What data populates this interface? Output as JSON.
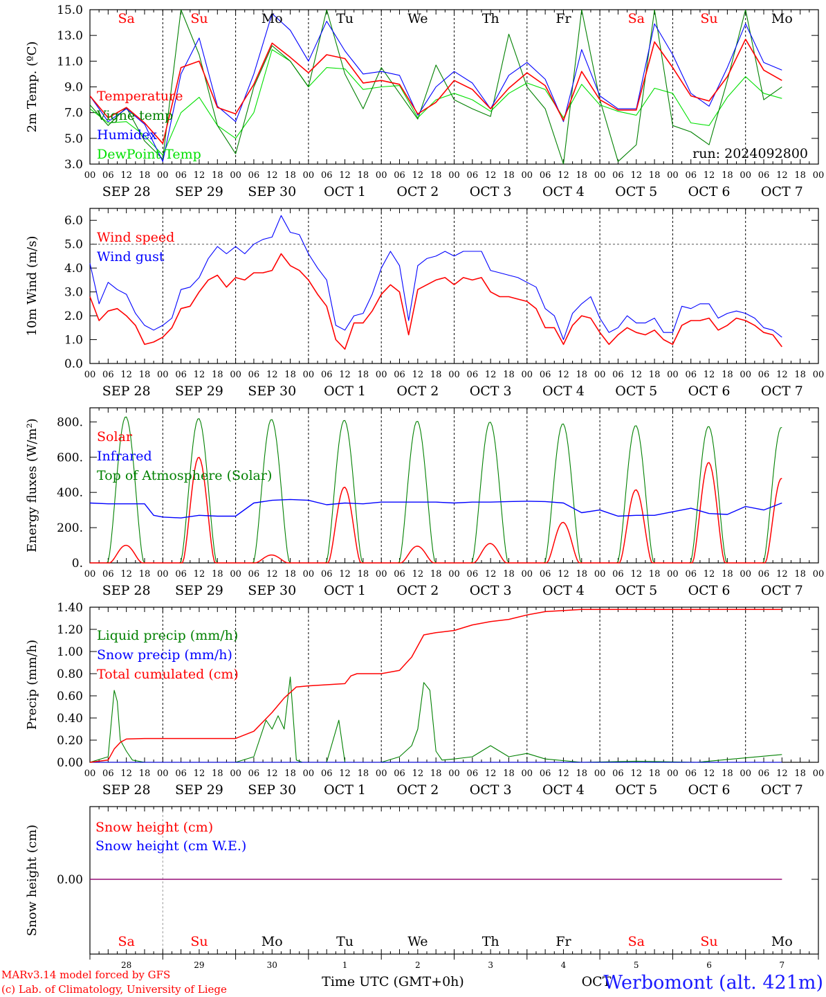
{
  "run_label": "run: 2024092800",
  "footer": {
    "credit1": "MARv3.14 model forced by GFS",
    "credit2": "(c) Lab. of Climatology, University of Liege",
    "xlabel": "Time UTC (GMT+0h)",
    "station": "Werbomont (alt. 421m)",
    "overlap_text": "OCT"
  },
  "days": [
    {
      "abbr": "Sa",
      "date": "SEP 28",
      "num": "28",
      "weekend": true
    },
    {
      "abbr": "Su",
      "date": "SEP 29",
      "num": "29",
      "weekend": true
    },
    {
      "abbr": "Mo",
      "date": "SEP 30",
      "num": "30",
      "weekend": false
    },
    {
      "abbr": "Tu",
      "date": "OCT 1",
      "num": "1",
      "weekend": false
    },
    {
      "abbr": "We",
      "date": "OCT 2",
      "num": "2",
      "weekend": false
    },
    {
      "abbr": "Th",
      "date": "OCT 3",
      "num": "3",
      "weekend": false
    },
    {
      "abbr": "Fr",
      "date": "OCT 4",
      "num": "4",
      "weekend": false
    },
    {
      "abbr": "Sa",
      "date": "OCT 5",
      "num": "5",
      "weekend": true
    },
    {
      "abbr": "Su",
      "date": "OCT 6",
      "num": "6",
      "weekend": true
    },
    {
      "abbr": "Mo",
      "date": "OCT 7",
      "num": "7",
      "weekend": false
    }
  ],
  "hour_ticks": [
    "00",
    "06",
    "12",
    "18"
  ],
  "end_tick": "00",
  "colors": {
    "red": "#ff0000",
    "green": "#008000",
    "blue": "#0000ff",
    "lightgreen": "#00e000",
    "purple": "#800080",
    "station": "#1a1aff"
  },
  "chart_data": [
    {
      "type": "line",
      "ylabel": "2m Temp. (ºC)",
      "ylim": [
        3.0,
        15.0
      ],
      "yticks": [
        "3.0",
        "5.0",
        "7.0",
        "9.0",
        "11.0",
        "13.0",
        "15.0"
      ],
      "x_unit": "hours since SEP 28 00 UTC",
      "series": [
        {
          "name": "Temperature",
          "color": "#ff0000",
          "x": [
            0,
            6,
            12,
            18,
            24,
            30,
            36,
            42,
            48,
            54,
            60,
            66,
            72,
            78,
            84,
            90,
            96,
            102,
            108,
            114,
            120,
            126,
            132,
            138,
            144,
            150,
            156,
            162,
            168,
            174,
            180,
            186,
            192,
            198,
            204,
            210,
            216,
            222,
            228
          ],
          "y": [
            8.3,
            6.6,
            7.4,
            6.2,
            4.6,
            10.5,
            11.0,
            7.4,
            6.9,
            9.2,
            12.4,
            11.3,
            10.1,
            11.5,
            11.2,
            9.3,
            9.5,
            9.2,
            6.9,
            7.8,
            9.5,
            8.8,
            7.3,
            8.9,
            10.1,
            9.1,
            6.4,
            10.2,
            8.0,
            7.2,
            7.2,
            12.5,
            10.5,
            8.3,
            7.9,
            9.8,
            12.7,
            10.3,
            9.5
          ]
        },
        {
          "name": "Vigne temp",
          "color": "#008000",
          "x": [
            0,
            6,
            12,
            18,
            24,
            30,
            36,
            42,
            48,
            54,
            60,
            66,
            72,
            78,
            84,
            90,
            96,
            102,
            108,
            114,
            120,
            126,
            132,
            138,
            144,
            150,
            156,
            162,
            168,
            174,
            180,
            186,
            192,
            198,
            204,
            210,
            216,
            222,
            228
          ],
          "y": [
            7.6,
            6.0,
            7.4,
            4.8,
            3.4,
            15.0,
            11.5,
            6.0,
            3.8,
            9.0,
            12.2,
            11.0,
            9.0,
            15.0,
            10.0,
            7.3,
            10.5,
            8.5,
            6.5,
            10.7,
            8.0,
            7.3,
            6.7,
            13.1,
            9.0,
            7.3,
            3.0,
            15.0,
            8.0,
            3.2,
            4.5,
            15.0,
            6.0,
            5.5,
            4.5,
            9.5,
            15.0,
            8.0,
            9.0
          ]
        },
        {
          "name": "Humidex",
          "color": "#0000ff",
          "x": [
            0,
            6,
            12,
            18,
            24,
            30,
            36,
            42,
            48,
            54,
            60,
            66,
            72,
            78,
            84,
            90,
            96,
            102,
            108,
            114,
            120,
            126,
            132,
            138,
            144,
            150,
            156,
            162,
            168,
            174,
            180,
            186,
            192,
            198,
            204,
            210,
            216,
            222,
            228
          ],
          "y": [
            8.3,
            6.3,
            7.3,
            6.1,
            3.2,
            10.0,
            12.8,
            7.5,
            6.3,
            10.0,
            14.7,
            13.4,
            11.0,
            14.1,
            11.8,
            10.0,
            10.2,
            9.9,
            6.8,
            9.0,
            10.2,
            9.3,
            7.3,
            9.9,
            10.9,
            9.6,
            6.3,
            11.9,
            8.3,
            7.3,
            7.3,
            13.9,
            11.5,
            8.5,
            7.5,
            10.5,
            13.9,
            10.9,
            10.3
          ]
        },
        {
          "name": "DewPoint Temp",
          "color": "#00e000",
          "x": [
            0,
            6,
            12,
            18,
            24,
            30,
            36,
            42,
            48,
            54,
            60,
            66,
            72,
            78,
            84,
            90,
            96,
            102,
            108,
            114,
            120,
            126,
            132,
            138,
            144,
            150,
            156,
            162,
            168,
            174,
            180,
            186,
            192,
            198,
            204,
            210,
            216,
            222,
            228
          ],
          "y": [
            7.3,
            6.2,
            6.3,
            5.2,
            3.7,
            7.0,
            8.2,
            6.0,
            5.0,
            7.0,
            11.9,
            11.0,
            9.0,
            10.5,
            10.4,
            8.8,
            9.0,
            9.1,
            6.6,
            8.0,
            8.5,
            8.0,
            7.1,
            8.5,
            9.3,
            8.8,
            6.6,
            9.2,
            7.6,
            7.1,
            6.8,
            8.9,
            8.5,
            6.2,
            6.0,
            8.2,
            9.8,
            8.5,
            8.1
          ]
        }
      ]
    },
    {
      "type": "line",
      "ylabel": "10m Wind (m/s)",
      "ylim": [
        0.0,
        6.5
      ],
      "yticks": [
        "0.0",
        "1.0",
        "2.0",
        "3.0",
        "4.0",
        "5.0",
        "6.0"
      ],
      "ref_line": 5.0,
      "x_unit": "hours since SEP 28 00 UTC",
      "series": [
        {
          "name": "Wind speed",
          "color": "#ff0000",
          "x": [
            0,
            3,
            6,
            9,
            12,
            15,
            18,
            21,
            24,
            27,
            30,
            33,
            36,
            39,
            42,
            45,
            48,
            51,
            54,
            57,
            60,
            63,
            66,
            69,
            72,
            75,
            78,
            81,
            84,
            87,
            90,
            93,
            96,
            99,
            102,
            105,
            108,
            111,
            114,
            117,
            120,
            123,
            126,
            129,
            132,
            135,
            138,
            141,
            144,
            147,
            150,
            153,
            156,
            159,
            162,
            165,
            168,
            171,
            174,
            177,
            180,
            183,
            186,
            189,
            192,
            195,
            198,
            201,
            204,
            207,
            210,
            213,
            216,
            219,
            222,
            225,
            228
          ],
          "y": [
            2.8,
            1.8,
            2.2,
            2.3,
            2.0,
            1.6,
            0.8,
            0.9,
            1.1,
            1.5,
            2.3,
            2.4,
            3.0,
            3.5,
            3.7,
            3.2,
            3.6,
            3.5,
            3.8,
            3.8,
            3.9,
            4.6,
            4.1,
            3.9,
            3.5,
            2.9,
            2.4,
            1.0,
            0.6,
            1.7,
            1.7,
            2.2,
            2.9,
            3.3,
            3.0,
            1.2,
            3.1,
            3.3,
            3.5,
            3.6,
            3.3,
            3.6,
            3.5,
            3.6,
            3.0,
            2.8,
            2.8,
            2.7,
            2.6,
            2.3,
            1.5,
            1.5,
            0.8,
            1.6,
            2.0,
            1.9,
            1.3,
            0.8,
            1.2,
            1.5,
            1.3,
            1.2,
            1.4,
            1.0,
            0.8,
            1.6,
            1.8,
            1.8,
            1.9,
            1.4,
            1.6,
            1.9,
            1.8,
            1.6,
            1.3,
            1.2,
            0.7
          ]
        },
        {
          "name": "Wind gust",
          "color": "#0000ff",
          "x": [
            0,
            3,
            6,
            9,
            12,
            15,
            18,
            21,
            24,
            27,
            30,
            33,
            36,
            39,
            42,
            45,
            48,
            51,
            54,
            57,
            60,
            63,
            66,
            69,
            72,
            75,
            78,
            81,
            84,
            87,
            90,
            93,
            96,
            99,
            102,
            105,
            108,
            111,
            114,
            117,
            120,
            123,
            126,
            129,
            132,
            135,
            138,
            141,
            144,
            147,
            150,
            153,
            156,
            159,
            162,
            165,
            168,
            171,
            174,
            177,
            180,
            183,
            186,
            189,
            192,
            195,
            198,
            201,
            204,
            207,
            210,
            213,
            216,
            219,
            222,
            225,
            228
          ],
          "y": [
            4.2,
            2.5,
            3.4,
            3.1,
            2.9,
            2.1,
            1.6,
            1.4,
            1.6,
            1.9,
            3.1,
            3.2,
            3.6,
            4.4,
            4.9,
            4.6,
            4.9,
            4.6,
            5.0,
            5.2,
            5.3,
            6.2,
            5.5,
            5.4,
            4.6,
            4.0,
            3.5,
            1.6,
            1.4,
            2.0,
            2.1,
            2.9,
            4.0,
            4.7,
            4.1,
            1.8,
            4.1,
            4.4,
            4.5,
            4.7,
            4.5,
            4.7,
            4.7,
            4.7,
            3.9,
            3.8,
            3.7,
            3.6,
            3.4,
            3.2,
            2.3,
            2.0,
            1.0,
            2.1,
            2.5,
            2.8,
            1.9,
            1.3,
            1.5,
            2.0,
            1.7,
            1.7,
            1.9,
            1.3,
            1.3,
            2.4,
            2.3,
            2.5,
            2.5,
            1.9,
            2.1,
            2.2,
            2.1,
            1.9,
            1.5,
            1.4,
            1.1
          ]
        }
      ]
    },
    {
      "type": "line",
      "ylabel": "Energy fluxes (W/m²)",
      "ylim": [
        0,
        880
      ],
      "yticks": [
        "0.",
        "200.",
        "400.",
        "600.",
        "800."
      ],
      "x_unit": "hours since SEP 28 00 UTC",
      "series": [
        {
          "name": "Solar",
          "color": "#ff0000",
          "day_peaks": [
            100,
            600,
            45,
            430,
            95,
            110,
            230,
            415,
            570,
            480
          ]
        },
        {
          "name": "Infrared",
          "color": "#0000ff",
          "x": [
            0,
            6,
            12,
            18,
            21,
            24,
            30,
            36,
            42,
            48,
            54,
            60,
            66,
            72,
            78,
            84,
            90,
            96,
            102,
            108,
            114,
            120,
            126,
            132,
            138,
            144,
            150,
            156,
            162,
            168,
            174,
            180,
            186,
            192,
            198,
            204,
            210,
            216,
            222,
            228
          ],
          "y": [
            340,
            335,
            335,
            335,
            270,
            260,
            255,
            270,
            265,
            265,
            340,
            355,
            360,
            355,
            330,
            340,
            335,
            345,
            345,
            345,
            345,
            340,
            345,
            345,
            348,
            350,
            348,
            340,
            285,
            300,
            265,
            270,
            270,
            290,
            310,
            280,
            275,
            320,
            300,
            340
          ]
        },
        {
          "name": "Top of Atmosphere (Solar)",
          "color": "#008000",
          "day_peaks": [
            830,
            820,
            815,
            810,
            805,
            800,
            790,
            780,
            775,
            770
          ]
        }
      ]
    },
    {
      "type": "line",
      "ylabel": "Precip (mm/h)",
      "ylim": [
        0.0,
        1.4
      ],
      "yticks": [
        "0.00",
        "0.20",
        "0.40",
        "0.60",
        "0.80",
        "1.00",
        "1.20",
        "1.40"
      ],
      "x_unit": "hours since SEP 28 00 UTC",
      "series": [
        {
          "name": "Liquid precip (mm/h)",
          "color": "#008000",
          "x": [
            0,
            6,
            8,
            9,
            10,
            12,
            14,
            18,
            24,
            48,
            54,
            58,
            60,
            62,
            64,
            66,
            68,
            70,
            72,
            78,
            82,
            84,
            86,
            88,
            90,
            96,
            102,
            106,
            108,
            110,
            112,
            114,
            116,
            120,
            126,
            132,
            138,
            144,
            150,
            162,
            180,
            200,
            228
          ],
          "y": [
            0,
            0.05,
            0.65,
            0.55,
            0.2,
            0.1,
            0.02,
            0,
            0,
            0,
            0.05,
            0.38,
            0.3,
            0.42,
            0.3,
            0.77,
            0.02,
            0,
            0,
            0,
            0.38,
            0,
            0,
            0,
            0,
            0,
            0.05,
            0.15,
            0.3,
            0.72,
            0.65,
            0.1,
            0.02,
            0.03,
            0.05,
            0.15,
            0.05,
            0.08,
            0.03,
            0,
            0.01,
            0,
            0.07
          ]
        },
        {
          "name": "Snow precip (mm/h)",
          "color": "#0000ff",
          "x": [
            0,
            228
          ],
          "y": [
            0,
            0
          ]
        },
        {
          "name": "Total cumulated (cm)",
          "color": "#ff0000",
          "x": [
            0,
            6,
            8,
            10,
            12,
            18,
            24,
            48,
            54,
            60,
            64,
            68,
            72,
            84,
            86,
            88,
            96,
            102,
            106,
            110,
            114,
            120,
            126,
            132,
            138,
            144,
            150,
            162,
            228
          ],
          "y": [
            0,
            0.02,
            0.12,
            0.18,
            0.21,
            0.215,
            0.215,
            0.215,
            0.28,
            0.45,
            0.58,
            0.68,
            0.69,
            0.71,
            0.78,
            0.8,
            0.8,
            0.83,
            0.95,
            1.15,
            1.17,
            1.19,
            1.24,
            1.27,
            1.29,
            1.33,
            1.36,
            1.38,
            1.38
          ]
        }
      ]
    },
    {
      "type": "line",
      "ylabel": "Snow height (cm)",
      "ytick": "0.00",
      "x_unit": "hours since SEP 28 00 UTC",
      "series": [
        {
          "name": "Snow height (cm)",
          "color": "#ff0000",
          "x": [
            0,
            228
          ],
          "y": [
            0,
            0
          ]
        },
        {
          "name": "Snow height (cm W.E.)",
          "color": "#0000ff",
          "x": [
            0,
            228
          ],
          "y": [
            0,
            0
          ]
        }
      ]
    }
  ]
}
